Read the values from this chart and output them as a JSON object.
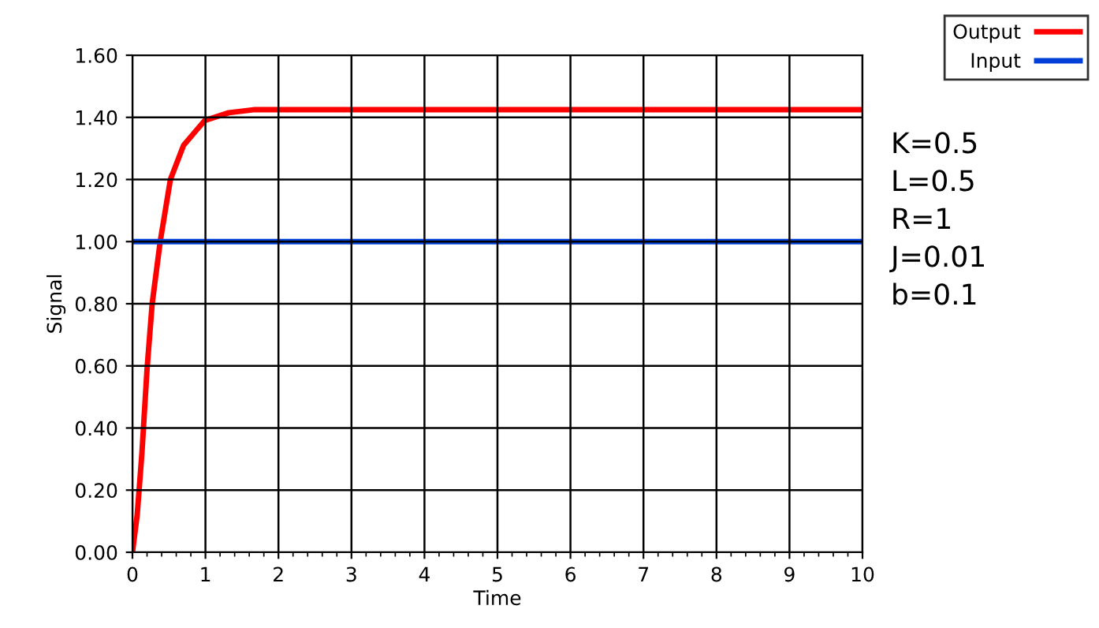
{
  "chart_data": {
    "type": "line",
    "xlabel": "Time",
    "ylabel": "Signal",
    "series": [
      {
        "name": "Output",
        "color": "#ff0000",
        "x": [
          0,
          0.065,
          0.13,
          0.2,
          0.27,
          0.38,
          0.52,
          0.7,
          0.99,
          1.32,
          1.68,
          3,
          10
        ],
        "values": [
          0,
          0.12,
          0.32,
          0.59,
          0.8,
          1.0,
          1.2,
          1.31,
          1.39,
          1.415,
          1.425,
          1.425,
          1.425
        ]
      },
      {
        "name": "Input",
        "color": "#0040d8",
        "x": [
          0,
          10
        ],
        "values": [
          1,
          1
        ]
      }
    ],
    "xlim": [
      0,
      10
    ],
    "xticks": [
      0,
      1,
      2,
      3,
      4,
      5,
      6,
      7,
      8,
      9,
      10
    ],
    "ylim": [
      0,
      1.6
    ],
    "yticks": [
      {
        "value": 0,
        "label": "0.00"
      },
      {
        "value": 0.2,
        "label": "0.20"
      },
      {
        "value": 0.4,
        "label": "0.40"
      },
      {
        "value": 0.6,
        "label": "0.60"
      },
      {
        "value": 0.8,
        "label": "0.80"
      },
      {
        "value": 1.0,
        "label": "1.00"
      },
      {
        "value": 1.2,
        "label": "1.20"
      },
      {
        "value": 1.4,
        "label": "1.40"
      },
      {
        "value": 1.6,
        "label": "1.60"
      }
    ],
    "grid": true,
    "legend": "top right",
    "marker": "none",
    "line_style": "solid",
    "annotations": [
      "K=0.5",
      "L=0.5",
      "R=1",
      "J=0.01",
      "b=0.1"
    ]
  }
}
